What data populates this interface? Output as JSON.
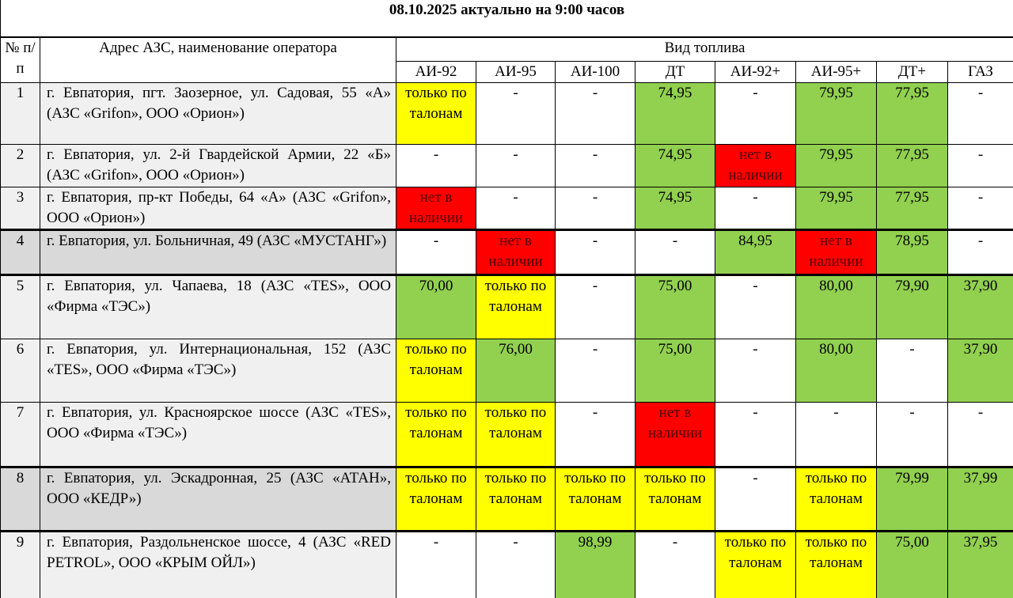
{
  "title": "08.10.2025 актуально на 9:00 часов",
  "table": {
    "header": {
      "number": "№ п/п",
      "address": "Адрес АЗС, наименование оператора",
      "fuel_group": "Вид топлива",
      "fuels": [
        "АИ-92",
        "АИ-95",
        "АИ-100",
        "ДТ",
        "АИ-92+",
        "АИ-95+",
        "ДТ+",
        "ГАЗ"
      ]
    },
    "rows": [
      {
        "number": "1",
        "address": "г. Евпатория, пгт. Заозерное, ул. Садовая, 55 «А» (АЗС «Grifon», ООО «Орион»)",
        "cells": [
          {
            "text": "только по талонам",
            "color": "#ffff00"
          },
          {
            "text": "-"
          },
          {
            "text": "-"
          },
          {
            "text": "74,95",
            "color": "#92d050"
          },
          {
            "text": "-"
          },
          {
            "text": "79,95",
            "color": "#92d050"
          },
          {
            "text": "77,95",
            "color": "#92d050"
          },
          {
            "text": "-"
          }
        ]
      },
      {
        "number": "2",
        "address": "г. Евпатория, ул. 2-й Гвардейской Армии, 22 «Б» (АЗС «Grifon», ООО «Орион»)",
        "cells": [
          {
            "text": "-"
          },
          {
            "text": "-"
          },
          {
            "text": "-"
          },
          {
            "text": "74,95",
            "color": "#92d050"
          },
          {
            "text": "нет в наличии",
            "color": "#ff0000"
          },
          {
            "text": "79,95",
            "color": "#92d050"
          },
          {
            "text": "77,95",
            "color": "#92d050"
          },
          {
            "text": "-"
          }
        ]
      },
      {
        "number": "3",
        "address": "г. Евпатория, пр-кт Победы, 64 «А» (АЗС «Grifon», ООО «Орион»)",
        "cells": [
          {
            "text": "нет в наличии",
            "color": "#ff0000"
          },
          {
            "text": "-"
          },
          {
            "text": "-"
          },
          {
            "text": "74,95",
            "color": "#92d050"
          },
          {
            "text": "-"
          },
          {
            "text": "79,95",
            "color": "#92d050"
          },
          {
            "text": "77,95",
            "color": "#92d050"
          },
          {
            "text": "-"
          }
        ]
      },
      {
        "number": "4",
        "address": "г. Евпатория, ул. Больничная, 49 (АЗС «МУСТАНГ»)",
        "cells": [
          {
            "text": "-"
          },
          {
            "text": "нет в наличии",
            "color": "#ff0000"
          },
          {
            "text": "-"
          },
          {
            "text": "-"
          },
          {
            "text": "84,95",
            "color": "#92d050"
          },
          {
            "text": "нет в наличии",
            "color": "#ff0000"
          },
          {
            "text": "78,95",
            "color": "#92d050"
          },
          {
            "text": "-"
          }
        ]
      },
      {
        "number": "5",
        "address": "г. Евпатория, ул. Чапаева, 18 (АЗС «TES», ООО «Фирма «ТЭС»)",
        "cells": [
          {
            "text": "70,00",
            "color": "#92d050"
          },
          {
            "text": "только по талонам",
            "color": "#ffff00"
          },
          {
            "text": "-"
          },
          {
            "text": "75,00",
            "color": "#92d050"
          },
          {
            "text": "-"
          },
          {
            "text": "80,00",
            "color": "#92d050"
          },
          {
            "text": "79,90",
            "color": "#92d050"
          },
          {
            "text": "37,90",
            "color": "#92d050"
          }
        ]
      },
      {
        "number": "6",
        "address": "г. Евпатория, ул. Интернациональная, 152 (АЗС «TES», ООО «Фирма «ТЭС»)",
        "cells": [
          {
            "text": "только по талонам",
            "color": "#ffff00"
          },
          {
            "text": "76,00",
            "color": "#92d050"
          },
          {
            "text": "-"
          },
          {
            "text": "75,00",
            "color": "#92d050"
          },
          {
            "text": "-"
          },
          {
            "text": "80,00",
            "color": "#92d050"
          },
          {
            "text": "-"
          },
          {
            "text": "37,90",
            "color": "#92d050"
          }
        ]
      },
      {
        "number": "7",
        "address": "г. Евпатория, ул. Красноярское шоссе (АЗС «TES», ООО «Фирма «ТЭС»)",
        "cells": [
          {
            "text": "только по талонам",
            "color": "#ffff00"
          },
          {
            "text": "только по талонам",
            "color": "#ffff00"
          },
          {
            "text": "-"
          },
          {
            "text": "нет в наличии",
            "color": "#ff0000"
          },
          {
            "text": "-"
          },
          {
            "text": "-"
          },
          {
            "text": "-"
          },
          {
            "text": "-"
          }
        ]
      },
      {
        "number": "8",
        "address": "г. Евпатория, ул. Эскадронная, 25 (АЗС «АТАН», ООО «КЕДР»)",
        "cells": [
          {
            "text": "только по талонам",
            "color": "#ffff00"
          },
          {
            "text": "только по талонам",
            "color": "#ffff00"
          },
          {
            "text": "только по талонам",
            "color": "#ffff00"
          },
          {
            "text": "только по талонам",
            "color": "#ffff00"
          },
          {
            "text": "-"
          },
          {
            "text": "только по талонам",
            "color": "#ffff00"
          },
          {
            "text": "79,99",
            "color": "#92d050"
          },
          {
            "text": "37,99",
            "color": "#92d050"
          }
        ]
      },
      {
        "number": "9",
        "address": "г. Евпатория, Раздольненское шоссе, 4 (АЗС «RED PETROL», ООО «КРЫМ ОЙЛ»)",
        "cells": [
          {
            "text": "-"
          },
          {
            "text": "-"
          },
          {
            "text": "98,99",
            "color": "#92d050"
          },
          {
            "text": "-"
          },
          {
            "text": "только по талонам",
            "color": "#ffff00"
          },
          {
            "text": "только по талонам",
            "color": "#ffff00"
          },
          {
            "text": "75,00",
            "color": "#92d050"
          },
          {
            "text": "37,95",
            "color": "#92d050"
          }
        ]
      }
    ]
  }
}
